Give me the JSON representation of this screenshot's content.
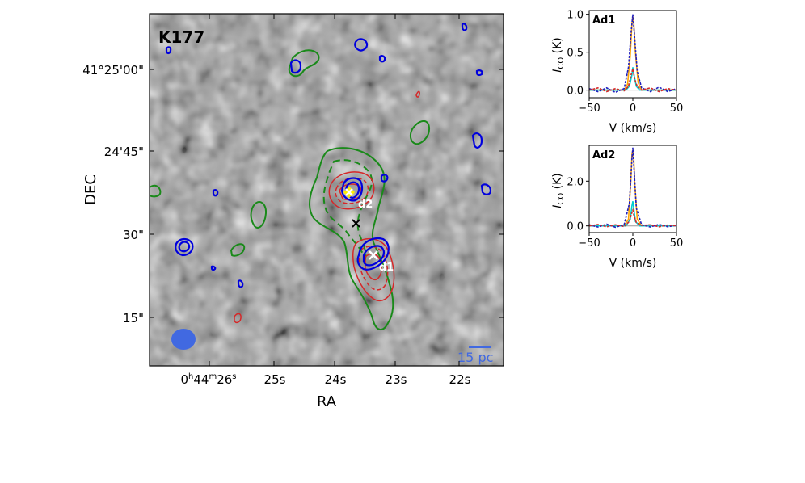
{
  "chart_data": [
    {
      "type": "heatmap",
      "title": "K177",
      "xlabel": "RA",
      "ylabel": "DEC",
      "x_ticks": [
        {
          "label": "0h44m26s",
          "sup_parts": [
            "0",
            "h",
            "44",
            "m",
            "26",
            "s"
          ]
        },
        {
          "label": "25s"
        },
        {
          "label": "24s"
        },
        {
          "label": "23s"
        },
        {
          "label": "22s"
        }
      ],
      "y_ticks": [
        "41°25'00\"",
        "24'45\"",
        "30\"",
        "15\""
      ],
      "markers": [
        {
          "label": "d1",
          "color": "#ffffff"
        },
        {
          "label": "d2",
          "color": "#ffffff"
        }
      ],
      "scale_bar": "15 pc",
      "contour_colors": {
        "green": "#1a8a1a",
        "red": "#d62728",
        "blue": "#0000dd"
      },
      "beam_color": "#4169e1"
    },
    {
      "type": "line",
      "title": "Ad1",
      "xlabel": "V (km/s)",
      "ylabel": "I_CO (K)",
      "xlim": [
        -50,
        50
      ],
      "ylim": [
        -0.1,
        1.05
      ],
      "x_ticks": [
        "−50",
        "0",
        "50"
      ],
      "y_ticks": [
        "0.0",
        "0.5",
        "1.0"
      ],
      "series": [
        {
          "color": "#ffa500",
          "x": [
            -50,
            -10,
            -6,
            -3,
            -1,
            0,
            1,
            3,
            6,
            10,
            50
          ],
          "y": [
            0,
            0.0,
            0.08,
            0.45,
            0.88,
            0.97,
            0.9,
            0.5,
            0.1,
            0.0,
            0
          ]
        },
        {
          "color": "#00ced1",
          "x": [
            -50,
            -8,
            -4,
            -1,
            0,
            1,
            4,
            8,
            50
          ],
          "y": [
            0,
            0.0,
            0.05,
            0.2,
            0.3,
            0.22,
            0.05,
            0.0,
            0
          ]
        },
        {
          "color": "#1f1fbf",
          "x": [
            -50,
            -40,
            -30,
            -20,
            -10,
            -5,
            -2,
            0,
            2,
            5,
            10,
            20,
            30,
            40,
            50
          ],
          "y": [
            0.02,
            -0.02,
            0.03,
            -0.03,
            0.02,
            0.3,
            0.75,
            1.0,
            0.7,
            0.25,
            0.03,
            -0.02,
            0.04,
            -0.02,
            0.02
          ]
        },
        {
          "color": "#d62728",
          "x": [
            -50,
            -40,
            -30,
            -20,
            -10,
            -5,
            -2,
            0,
            2,
            5,
            10,
            20,
            30,
            40,
            50
          ],
          "y": [
            0.0,
            0.03,
            -0.02,
            0.02,
            -0.01,
            0.05,
            0.2,
            0.28,
            0.15,
            0.05,
            0.0,
            0.03,
            -0.02,
            0.02,
            0.0
          ]
        }
      ]
    },
    {
      "type": "line",
      "title": "Ad2",
      "xlabel": "V (km/s)",
      "ylabel": "I_CO (K)",
      "xlim": [
        -50,
        50
      ],
      "ylim": [
        -0.3,
        3.6
      ],
      "x_ticks": [
        "−50",
        "0",
        "50"
      ],
      "y_ticks": [
        "0.0",
        "2.0"
      ],
      "series": [
        {
          "color": "#ffa500",
          "x": [
            -50,
            -10,
            -5,
            -2,
            -1,
            0,
            1,
            2,
            5,
            10,
            50
          ],
          "y": [
            0,
            0.0,
            0.3,
            2.2,
            3.2,
            3.4,
            3.1,
            2.0,
            0.3,
            0.0,
            0
          ]
        },
        {
          "color": "#00ced1",
          "x": [
            -50,
            -8,
            -3,
            -1,
            0,
            1,
            3,
            8,
            50
          ],
          "y": [
            0,
            0.0,
            0.3,
            0.9,
            1.1,
            0.8,
            0.2,
            0.0,
            0
          ]
        },
        {
          "color": "#1f1fbf",
          "x": [
            -50,
            -40,
            -30,
            -20,
            -10,
            -4,
            -1,
            0,
            1,
            4,
            10,
            20,
            30,
            40,
            50
          ],
          "y": [
            0.05,
            -0.05,
            0.08,
            -0.06,
            0.05,
            1.0,
            3.0,
            3.5,
            2.8,
            0.8,
            0.05,
            -0.05,
            0.07,
            -0.04,
            0.03
          ]
        },
        {
          "color": "#d62728",
          "x": [
            -50,
            -40,
            -30,
            -20,
            -10,
            -4,
            -1,
            0,
            1,
            4,
            10,
            20,
            30,
            40,
            50
          ],
          "y": [
            0.0,
            0.06,
            -0.04,
            0.05,
            -0.03,
            0.2,
            0.6,
            0.7,
            0.5,
            0.15,
            0.02,
            0.05,
            -0.04,
            0.04,
            0.0
          ]
        }
      ]
    }
  ]
}
